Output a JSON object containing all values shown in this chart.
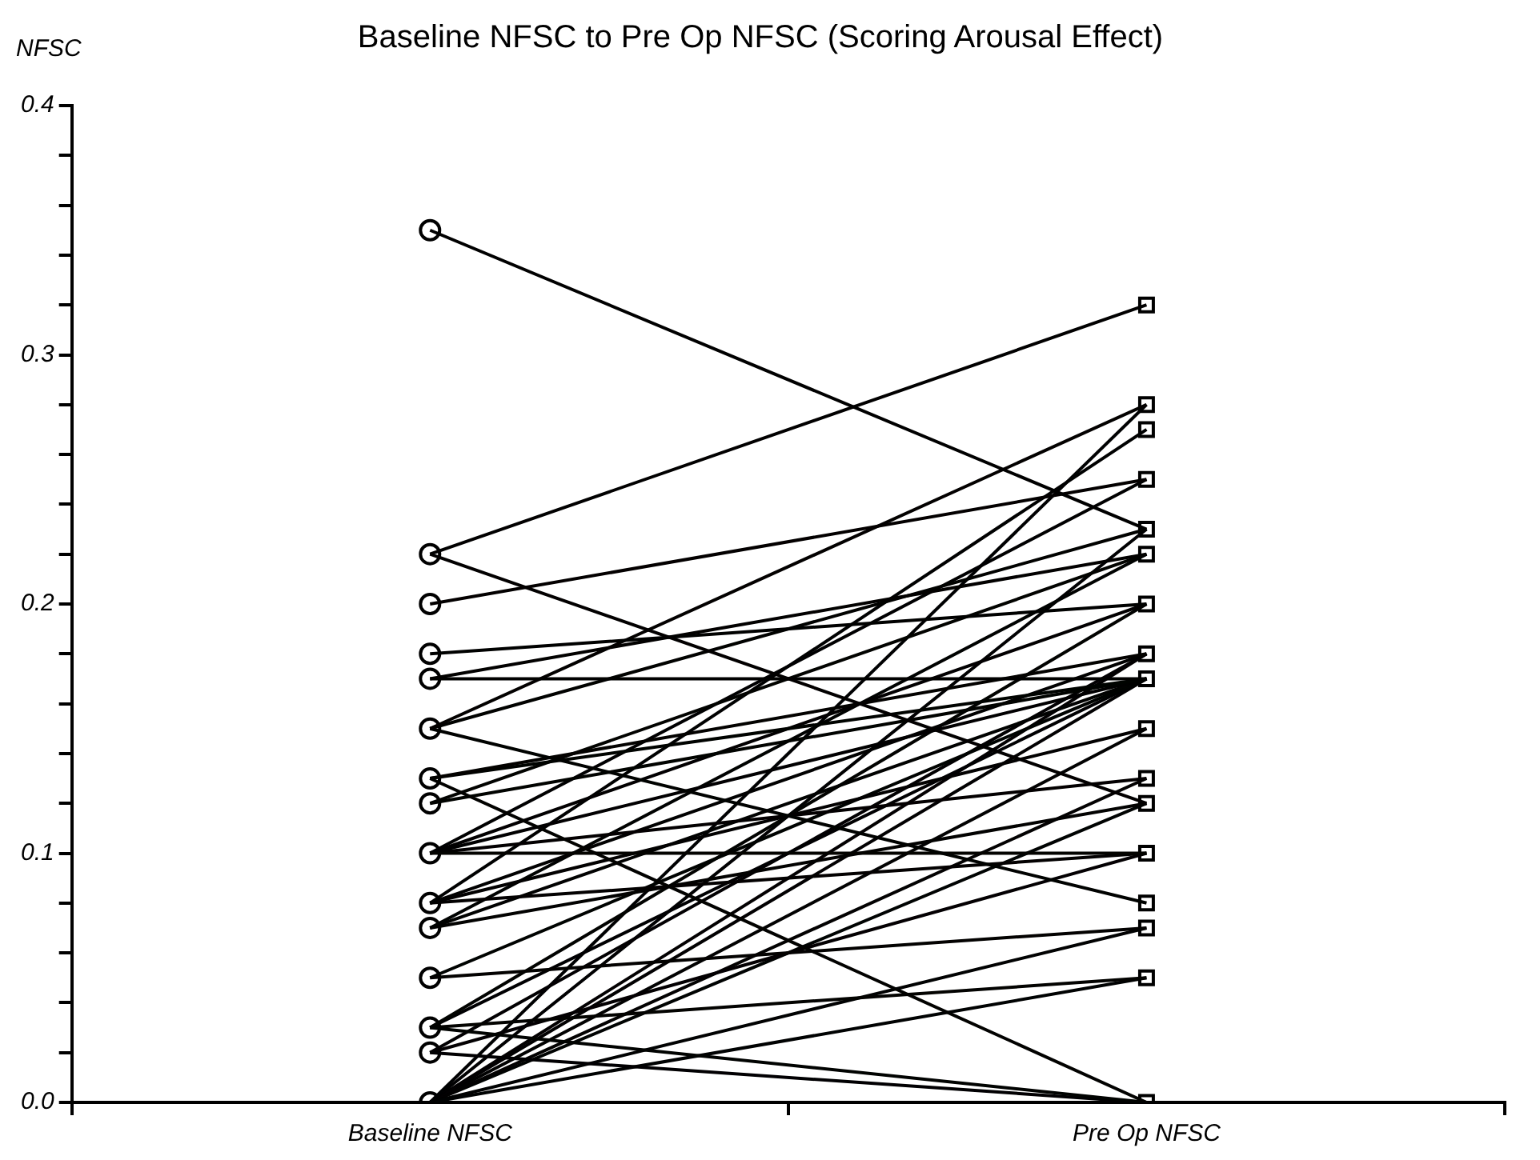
{
  "chart_data": {
    "type": "line",
    "title": "Baseline NFSC to Pre Op NFSC (Scoring Arousal Effect)",
    "ylabel": "NFSC",
    "categories": [
      "Baseline NFSC",
      "Pre Op NFSC"
    ],
    "ylim": [
      0,
      0.4
    ],
    "yticks": [
      {
        "value": 0,
        "label": "0.0"
      },
      {
        "value": 0.02,
        "label": null
      },
      {
        "value": 0.04,
        "label": null
      },
      {
        "value": 0.06,
        "label": null
      },
      {
        "value": 0.08,
        "label": null
      },
      {
        "value": 0.1,
        "label": "0.1"
      },
      {
        "value": 0.12,
        "label": null
      },
      {
        "value": 0.14,
        "label": null
      },
      {
        "value": 0.16,
        "label": null
      },
      {
        "value": 0.18,
        "label": null
      },
      {
        "value": 0.2,
        "label": "0.2"
      },
      {
        "value": 0.22,
        "label": null
      },
      {
        "value": 0.24,
        "label": null
      },
      {
        "value": 0.26,
        "label": null
      },
      {
        "value": 0.28,
        "label": null
      },
      {
        "value": 0.3,
        "label": "0.3"
      },
      {
        "value": 0.32,
        "label": null
      },
      {
        "value": 0.34,
        "label": null
      },
      {
        "value": 0.36,
        "label": null
      },
      {
        "value": 0.38,
        "label": null
      },
      {
        "value": 0.4,
        "label": "0.4"
      }
    ],
    "legend": false,
    "grid": false,
    "series": [
      {
        "color": "#000000",
        "values": [
          0.35,
          0.23
        ]
      },
      {
        "color": "#010000",
        "values": [
          0.22,
          0.32
        ]
      },
      {
        "color": "#020000",
        "values": [
          0.22,
          0.12
        ]
      },
      {
        "color": "#030000",
        "values": [
          0.2,
          0.25
        ]
      },
      {
        "color": "#000100",
        "values": [
          0.18,
          0.2
        ]
      },
      {
        "color": "#010100",
        "values": [
          0.17,
          0.17
        ]
      },
      {
        "color": "#020100",
        "values": [
          0.17,
          0.22
        ]
      },
      {
        "color": "#030100",
        "values": [
          0.15,
          0.28
        ]
      },
      {
        "color": "#000200",
        "values": [
          0.15,
          0.08
        ]
      },
      {
        "color": "#010200",
        "values": [
          0.15,
          0.23
        ]
      },
      {
        "color": "#020200",
        "values": [
          0.13,
          0
        ]
      },
      {
        "color": "#030200",
        "values": [
          0.13,
          0.18
        ]
      },
      {
        "color": "#000300",
        "values": [
          0.13,
          0.17
        ]
      },
      {
        "color": "#010300",
        "values": [
          0.12,
          0.17
        ]
      },
      {
        "color": "#020300",
        "values": [
          0.12,
          0.22
        ]
      },
      {
        "color": "#030300",
        "values": [
          0.1,
          0.1
        ]
      },
      {
        "color": "#000001",
        "values": [
          0.1,
          0.25
        ]
      },
      {
        "color": "#010001",
        "values": [
          0.1,
          0.17
        ]
      },
      {
        "color": "#020001",
        "values": [
          0.1,
          0.2
        ]
      },
      {
        "color": "#030001",
        "values": [
          0.1,
          0.13
        ]
      },
      {
        "color": "#000101",
        "values": [
          0.08,
          0.27
        ]
      },
      {
        "color": "#010101",
        "values": [
          0.08,
          0.18
        ]
      },
      {
        "color": "#020101",
        "values": [
          0.08,
          0.15
        ]
      },
      {
        "color": "#030101",
        "values": [
          0.08,
          0.1
        ]
      },
      {
        "color": "#000201",
        "values": [
          0.07,
          0.22
        ]
      },
      {
        "color": "#010201",
        "values": [
          0.07,
          0.17
        ]
      },
      {
        "color": "#020201",
        "values": [
          0.07,
          0.12
        ]
      },
      {
        "color": "#030201",
        "values": [
          0.05,
          0.07
        ]
      },
      {
        "color": "#000301",
        "values": [
          0.05,
          0.17
        ]
      },
      {
        "color": "#010301",
        "values": [
          0.03,
          0
        ]
      },
      {
        "color": "#020301",
        "values": [
          0.03,
          0.2
        ]
      },
      {
        "color": "#030301",
        "values": [
          0.03,
          0.05
        ]
      },
      {
        "color": "#000002",
        "values": [
          0.03,
          0.17
        ]
      },
      {
        "color": "#010002",
        "values": [
          0.02,
          0
        ]
      },
      {
        "color": "#020002",
        "values": [
          0.02,
          0.18
        ]
      },
      {
        "color": "#030002",
        "values": [
          0.02,
          0.1
        ]
      },
      {
        "color": "#000102",
        "values": [
          0,
          0.28
        ]
      },
      {
        "color": "#010102",
        "values": [
          0,
          0.23
        ]
      },
      {
        "color": "#020102",
        "values": [
          0,
          0.17
        ]
      },
      {
        "color": "#030102",
        "values": [
          0,
          0.18
        ]
      },
      {
        "color": "#000202",
        "values": [
          0,
          0.05
        ]
      },
      {
        "color": "#010202",
        "values": [
          0,
          0.07
        ]
      },
      {
        "color": "#020202",
        "values": [
          0,
          0.15
        ]
      },
      {
        "color": "#030202",
        "values": [
          0,
          0.13
        ]
      },
      {
        "color": "#000302",
        "values": [
          0,
          0.12
        ]
      },
      {
        "type": "scatter",
        "marker": "circle",
        "color": "#000000",
        "x": [
          "Baseline NFSC",
          "Baseline NFSC",
          "Baseline NFSC",
          "Baseline NFSC",
          "Baseline NFSC",
          "Baseline NFSC",
          "Baseline NFSC",
          "Baseline NFSC",
          "Baseline NFSC",
          "Baseline NFSC",
          "Baseline NFSC",
          "Baseline NFSC",
          "Baseline NFSC",
          "Baseline NFSC",
          "Baseline NFSC"
        ],
        "values": [
          0.35,
          0.22,
          0.2,
          0.18,
          0.17,
          0.15,
          0.13,
          0.12,
          0.1,
          0.08,
          0.07,
          0.05,
          0.03,
          0.02,
          0
        ]
      },
      {
        "type": "scatter",
        "marker": "square",
        "color": "#000000",
        "x": [
          "Pre Op NFSC",
          "Pre Op NFSC",
          "Pre Op NFSC",
          "Pre Op NFSC",
          "Pre Op NFSC",
          "Pre Op NFSC",
          "Pre Op NFSC",
          "Pre Op NFSC",
          "Pre Op NFSC",
          "Pre Op NFSC",
          "Pre Op NFSC",
          "Pre Op NFSC",
          "Pre Op NFSC",
          "Pre Op NFSC",
          "Pre Op NFSC",
          "Pre Op NFSC",
          "Pre Op NFSC"
        ],
        "values": [
          0.32,
          0.28,
          0.27,
          0.25,
          0.23,
          0.22,
          0.2,
          0.18,
          0.17,
          0.15,
          0.13,
          0.12,
          0.1,
          0.08,
          0.07,
          0.05,
          0
        ]
      }
    ]
  }
}
